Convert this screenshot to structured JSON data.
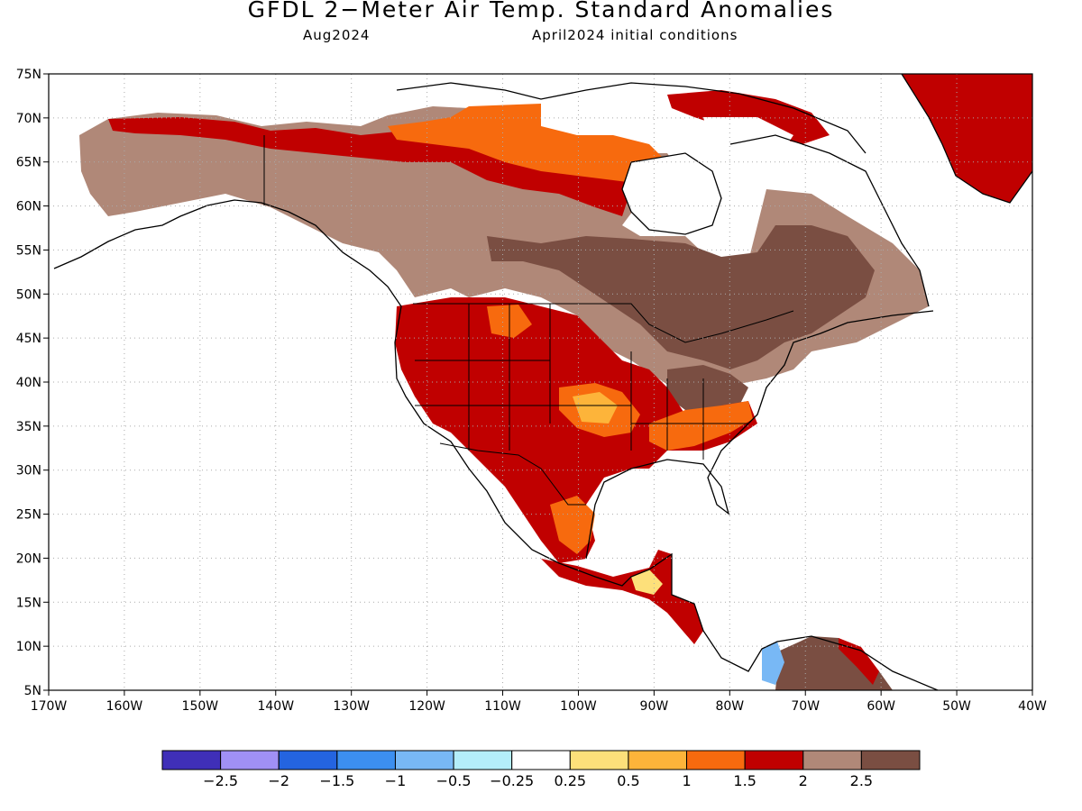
{
  "title": "GFDL 2−Meter Air Temp. Standard Anomalies",
  "valid_month": "Aug2024",
  "initial_conditions": "April2024 initial conditions",
  "lon_ticks": [
    "170W",
    "160W",
    "150W",
    "140W",
    "130W",
    "120W",
    "110W",
    "100W",
    "90W",
    "80W",
    "70W",
    "60W",
    "50W",
    "40W"
  ],
  "lat_ticks": [
    "5N",
    "10N",
    "15N",
    "20N",
    "25N",
    "30N",
    "35N",
    "40N",
    "45N",
    "50N",
    "55N",
    "60N",
    "65N",
    "70N",
    "75N"
  ],
  "colorbar": {
    "labels": [
      "−2.5",
      "−2",
      "−1.5",
      "−1",
      "−0.5",
      "−0.25",
      "0.25",
      "0.5",
      "1",
      "1.5",
      "2",
      "2.5"
    ],
    "colors": [
      "#3f2fb8",
      "#a090f5",
      "#2464e0",
      "#3c8ff0",
      "#78b8f5",
      "#b4eefa",
      "#ffffff",
      "#fde07a",
      "#fdb43a",
      "#f76a0e",
      "#c00000",
      "#b08878",
      "#7a4e42"
    ]
  },
  "palette": {
    "land_outline": "#000000",
    "grid": "#aaaaaa"
  },
  "map_extent": {
    "lon_min": -170,
    "lon_max": -40,
    "lat_min": 5,
    "lat_max": 75
  }
}
